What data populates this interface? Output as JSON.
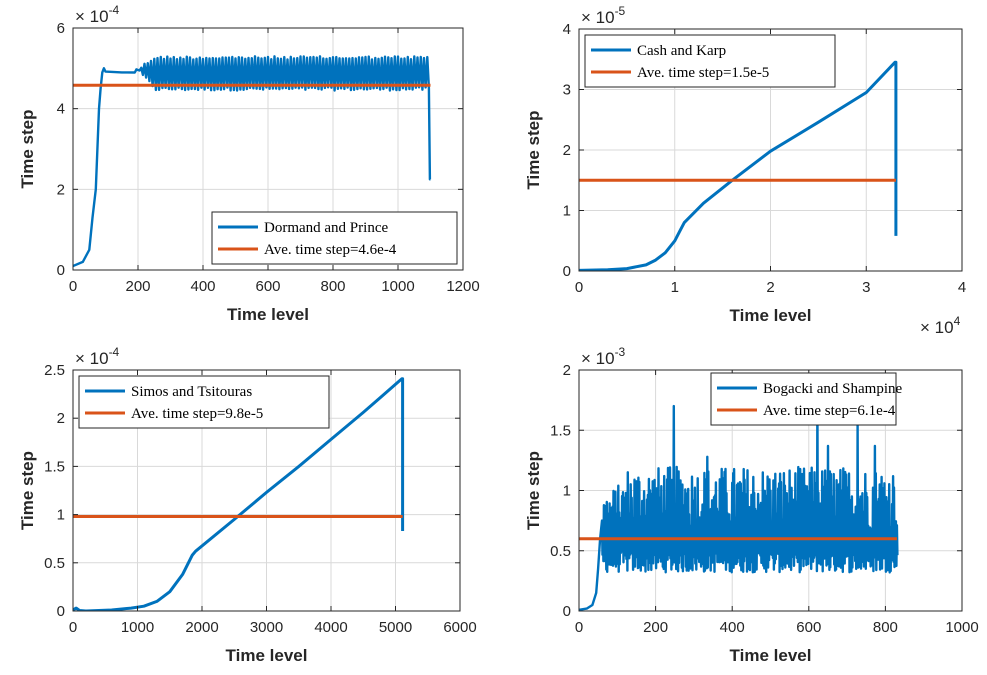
{
  "colors": {
    "series1": "#0072BD",
    "series2": "#D95319",
    "axis": "#262626",
    "grid": "#d9d9d9"
  },
  "chart_data": [
    {
      "type": "line",
      "xlabel": "Time level",
      "ylabel": "Time step",
      "xlim": [
        0,
        1200
      ],
      "ylim": [
        0,
        6
      ],
      "xticks": [
        0,
        200,
        400,
        600,
        800,
        1000,
        1200
      ],
      "xtick_labels": [
        "0",
        "200",
        "400",
        "600",
        "800",
        "1000",
        "1200"
      ],
      "yticks": [
        0,
        2,
        4,
        6
      ],
      "ytick_labels": [
        "0",
        "2",
        "4",
        "6"
      ],
      "y_exponent": {
        "base": "× 10",
        "power": "-4"
      },
      "x_exponent": null,
      "grid": true,
      "legend_position": "bottom-right",
      "series": [
        {
          "name": "Dormand and Prince",
          "color": "#0072BD",
          "x": [
            0,
            30,
            50,
            60,
            70,
            75,
            80,
            85,
            90,
            95,
            100,
            150,
            200,
            250,
            1095,
            1098,
            1100
          ],
          "y": [
            0.1,
            0.2,
            0.5,
            1.3,
            2.0,
            3.0,
            4.0,
            4.5,
            4.9,
            5.0,
            4.92,
            4.9,
            4.95,
            5.05,
            5.0,
            2.25,
            2.25
          ],
          "oscillation": {
            "x_start": 190,
            "x_end": 1095,
            "period": 20,
            "low": 4.45,
            "high": 5.3
          }
        },
        {
          "name": "Ave. time step=4.6e-4",
          "color": "#D95319",
          "x": [
            0,
            1100
          ],
          "y": [
            4.58,
            4.58
          ]
        }
      ]
    },
    {
      "type": "line",
      "xlabel": "Time level",
      "ylabel": "Time step",
      "xlim": [
        0,
        4
      ],
      "ylim": [
        0,
        4
      ],
      "xticks": [
        0,
        1,
        2,
        3,
        4
      ],
      "xtick_labels": [
        "0",
        "1",
        "2",
        "3",
        "4"
      ],
      "yticks": [
        0,
        1,
        2,
        3,
        4
      ],
      "ytick_labels": [
        "0",
        "1",
        "2",
        "3",
        "4"
      ],
      "y_exponent": {
        "base": "× 10",
        "power": "-5"
      },
      "x_exponent": {
        "base": "× 10",
        "power": "4"
      },
      "grid": true,
      "legend_position": "top-left",
      "series": [
        {
          "name": "Cash and Karp",
          "color": "#0072BD",
          "x": [
            0,
            0.3,
            0.5,
            0.7,
            0.8,
            0.9,
            1.0,
            1.05,
            1.1,
            1.3,
            1.6,
            2.0,
            2.5,
            3.0,
            3.3,
            3.31,
            3.31
          ],
          "y": [
            0.01,
            0.02,
            0.04,
            0.1,
            0.18,
            0.3,
            0.5,
            0.65,
            0.8,
            1.12,
            1.5,
            1.98,
            2.46,
            2.95,
            3.45,
            3.45,
            0.58
          ]
        },
        {
          "name": "Ave. time step=1.5e-5",
          "color": "#D95319",
          "x": [
            0,
            3.31
          ],
          "y": [
            1.5,
            1.5
          ]
        }
      ]
    },
    {
      "type": "line",
      "xlabel": "Time level",
      "ylabel": "Time step",
      "xlim": [
        0,
        6000
      ],
      "ylim": [
        0,
        2.5
      ],
      "xticks": [
        0,
        1000,
        2000,
        3000,
        4000,
        5000,
        6000
      ],
      "xtick_labels": [
        "0",
        "1000",
        "2000",
        "3000",
        "4000",
        "5000",
        "6000"
      ],
      "yticks": [
        0,
        0.5,
        1,
        1.5,
        2,
        2.5
      ],
      "ytick_labels": [
        "0",
        "0.5",
        "1",
        "1.5",
        "2",
        "2.5"
      ],
      "y_exponent": {
        "base": "× 10",
        "power": "-4"
      },
      "x_exponent": null,
      "grid": true,
      "legend_position": "top-left",
      "series": [
        {
          "name": "Simos and Tsitouras",
          "color": "#0072BD",
          "x": [
            0,
            50,
            100,
            200,
            600,
            900,
            1100,
            1300,
            1500,
            1700,
            1850,
            1900,
            2500,
            3000,
            3500,
            4000,
            4500,
            5100,
            5110,
            5110
          ],
          "y": [
            0.01,
            0.03,
            0.005,
            0.0,
            0.01,
            0.03,
            0.05,
            0.1,
            0.2,
            0.38,
            0.58,
            0.62,
            0.95,
            1.23,
            1.5,
            1.78,
            2.06,
            2.41,
            2.41,
            0.83
          ]
        },
        {
          "name": "Ave. time step=9.8e-5",
          "color": "#D95319",
          "x": [
            0,
            5110
          ],
          "y": [
            0.98,
            0.98
          ]
        }
      ]
    },
    {
      "type": "line",
      "xlabel": "Time level",
      "ylabel": "Time step",
      "xlim": [
        0,
        1000
      ],
      "ylim": [
        0,
        2
      ],
      "xticks": [
        0,
        200,
        400,
        600,
        800,
        1000
      ],
      "xtick_labels": [
        "0",
        "200",
        "400",
        "600",
        "800",
        "1000"
      ],
      "yticks": [
        0,
        0.5,
        1,
        1.5,
        2
      ],
      "ytick_labels": [
        "0",
        "0.5",
        "1",
        "1.5",
        "2"
      ],
      "y_exponent": {
        "base": "× 10",
        "power": "-3"
      },
      "x_exponent": null,
      "grid": true,
      "legend_position": "top-right",
      "series": [
        {
          "name": "Bogacki and Shampine",
          "color": "#0072BD",
          "x": [
            0,
            20,
            35,
            45,
            50,
            55,
            60
          ],
          "y": [
            0.01,
            0.02,
            0.05,
            0.15,
            0.35,
            0.6,
            0.75
          ],
          "oscillation": {
            "x_start": 60,
            "x_end": 830,
            "period": 5,
            "low_range": [
              0.32,
              0.5
            ],
            "high_range": [
              0.65,
              1.2
            ],
            "spikes": [
              {
                "x": 248,
                "y": 1.7
              },
              {
                "x": 622,
                "y": 1.75
              },
              {
                "x": 651,
                "y": 1.37
              },
              {
                "x": 728,
                "y": 1.55
              },
              {
                "x": 773,
                "y": 1.37
              },
              {
                "x": 335,
                "y": 1.28
              }
            ]
          }
        },
        {
          "name": "Ave. time step=6.1e-4",
          "color": "#D95319",
          "x": [
            0,
            830
          ],
          "y": [
            0.6,
            0.6
          ]
        }
      ]
    }
  ]
}
